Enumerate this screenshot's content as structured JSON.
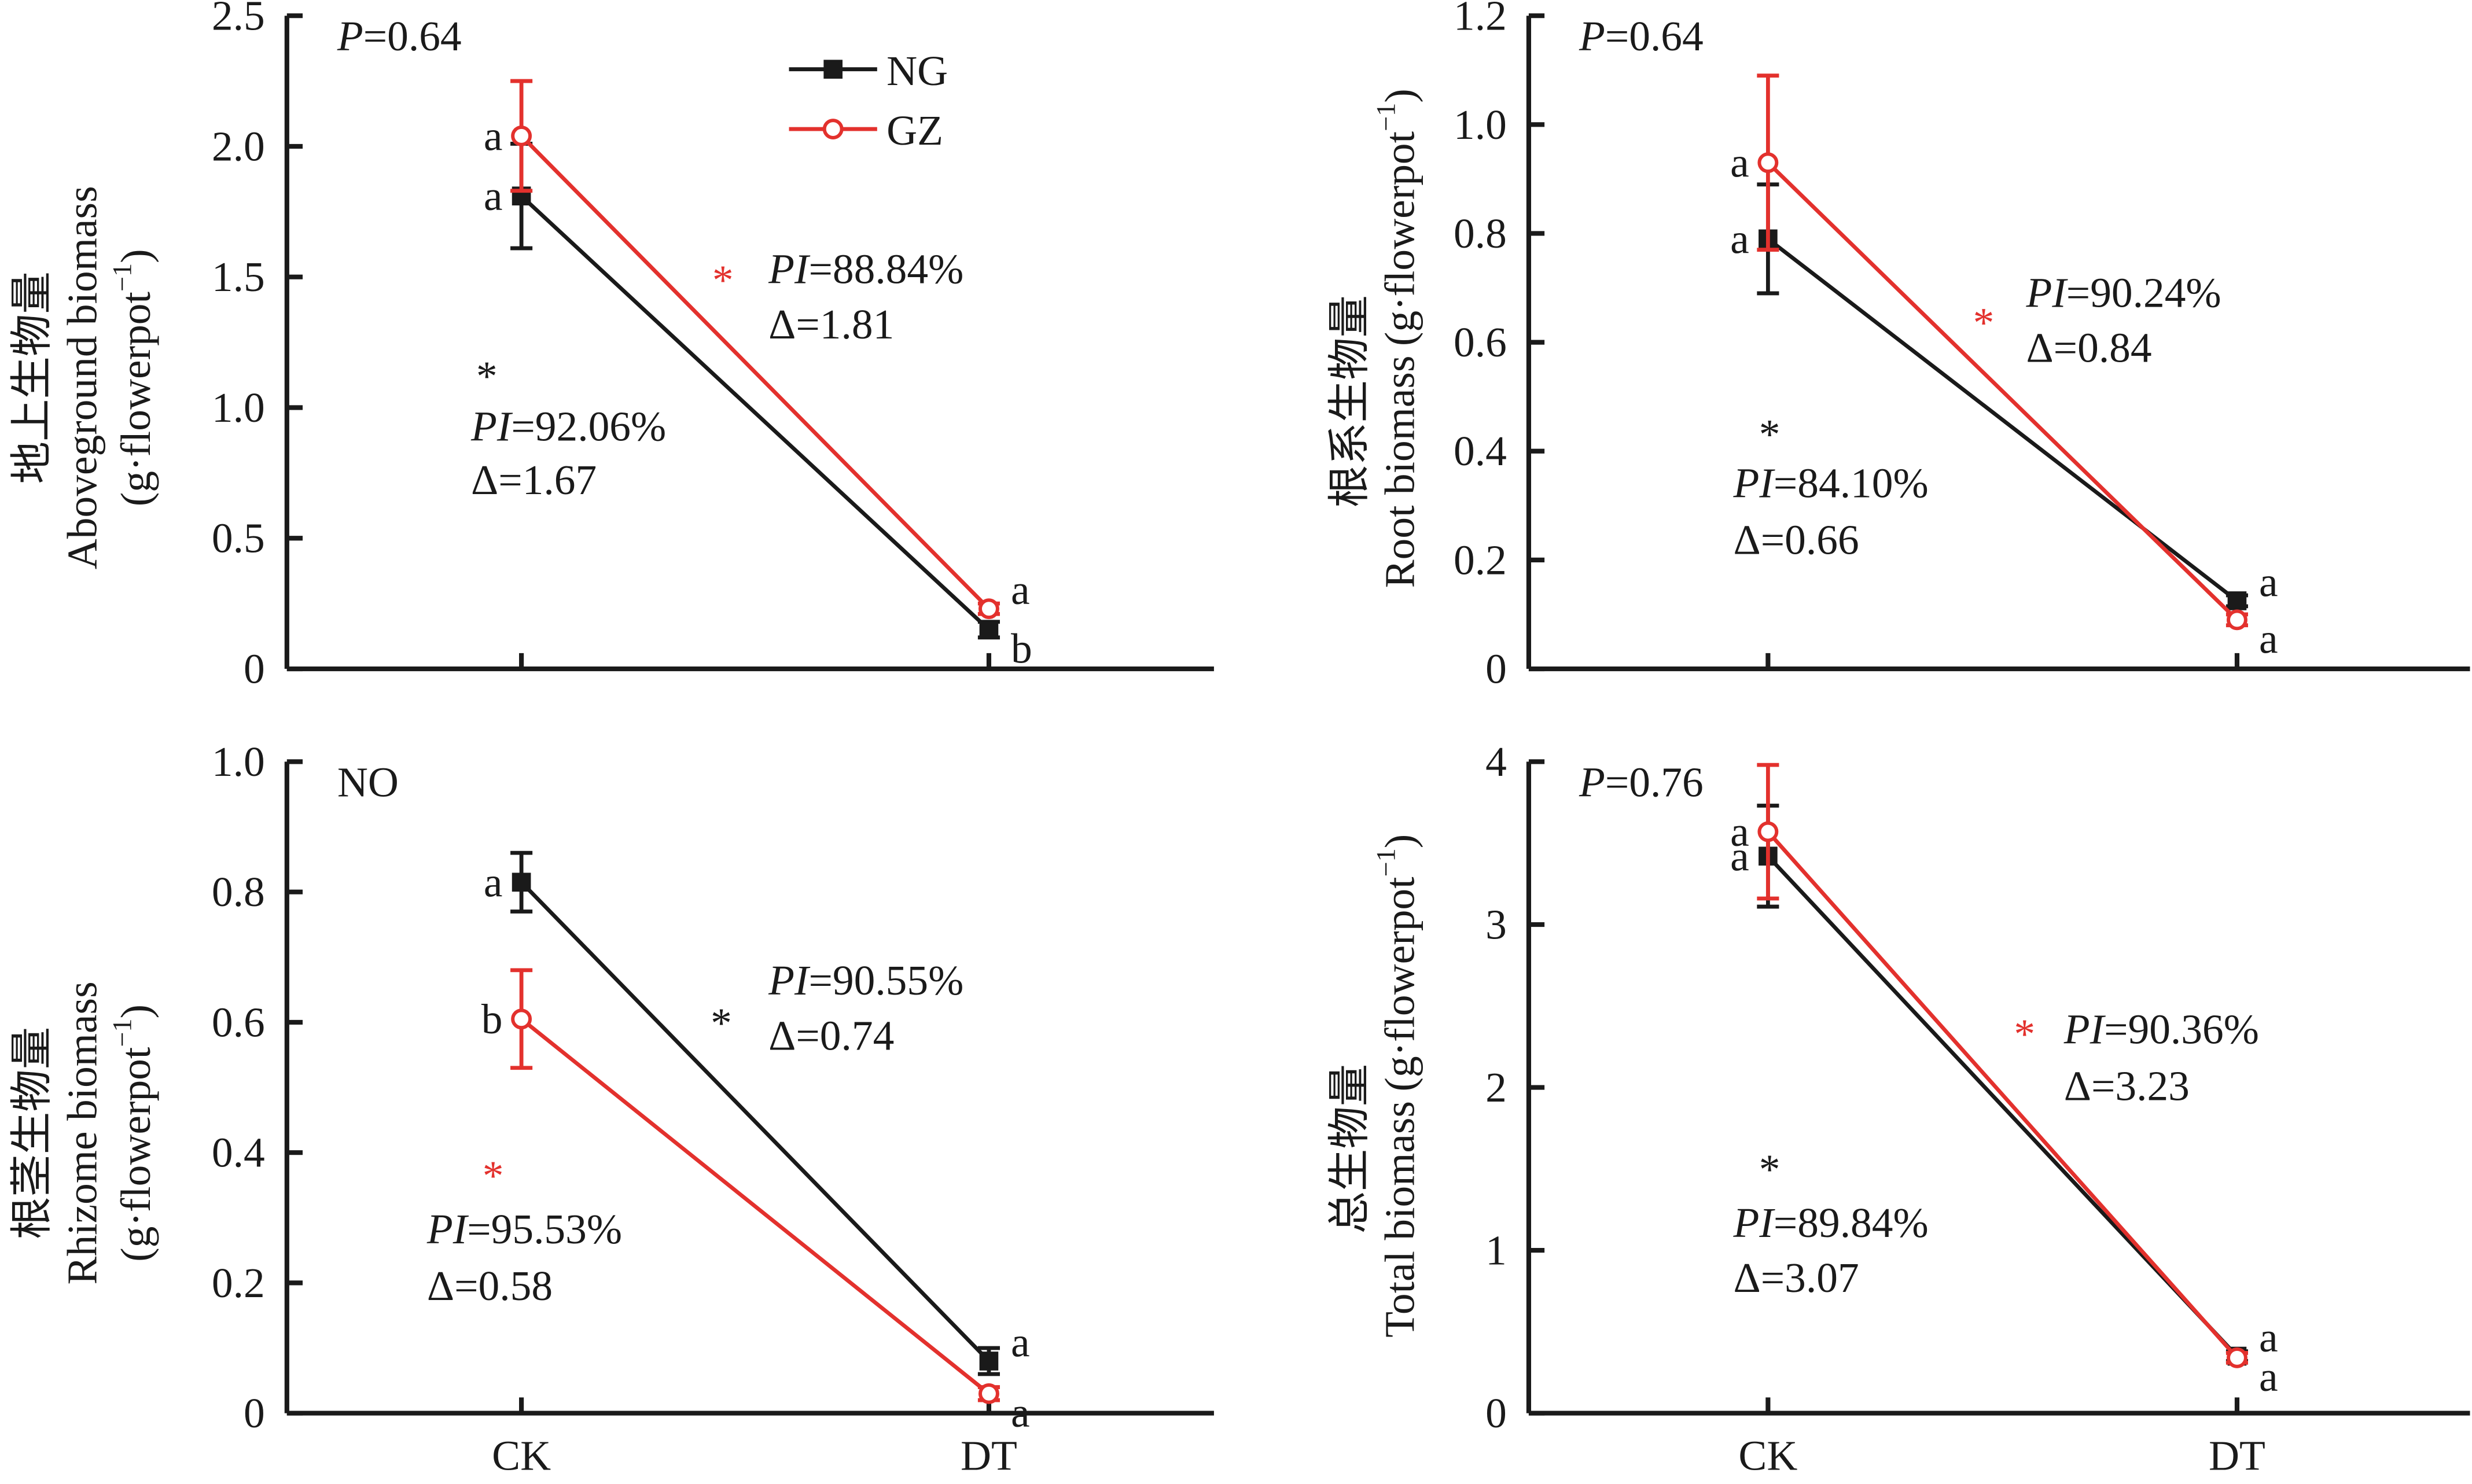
{
  "colors": {
    "NG": "#1a1a1a",
    "GZ": "#e3312d",
    "text": "#1a1a1a"
  },
  "legend": [
    {
      "name": "NG",
      "marker": "filled-square"
    },
    {
      "name": "GZ",
      "marker": "open-circle"
    }
  ],
  "chart_data": [
    {
      "type": "line",
      "panel": "top-left",
      "ylabel_cn": "地上生物量",
      "ylabel": "Aboveground biomass",
      "ylabel_unit": "(g·flowerpot",
      "ylabel_sup": "−1",
      "ylabel_close": ")",
      "categories": [
        "CK",
        "DT"
      ],
      "ylim": [
        0,
        2.5
      ],
      "yticks": [
        0,
        0.5,
        1.0,
        1.5,
        2.0,
        2.5
      ],
      "ytick_labels": [
        "0",
        "0.5",
        "1.0",
        "1.5",
        "2.0",
        "2.5"
      ],
      "p_label": "P",
      "p_value": "=0.64",
      "series": [
        {
          "name": "NG",
          "values": [
            1.81,
            0.15
          ],
          "err_low": [
            1.61,
            0.12
          ],
          "err_high": [
            2.01,
            0.18
          ],
          "letters": [
            "a",
            "b"
          ]
        },
        {
          "name": "GZ",
          "values": [
            2.04,
            0.23
          ],
          "err_low": [
            1.83,
            0.21
          ],
          "err_high": [
            2.25,
            0.25
          ],
          "letters": [
            "a",
            "a"
          ]
        }
      ],
      "annotations": [
        {
          "series": "GZ",
          "star": "*",
          "pi": "=88.84%",
          "delta": "Δ=1.81"
        },
        {
          "series": "NG",
          "star": "*",
          "pi": "=92.06%",
          "delta": "Δ=1.67"
        }
      ],
      "show_legend": true
    },
    {
      "type": "line",
      "panel": "top-right",
      "ylabel_cn": "根系生物量",
      "ylabel": "Root biomass",
      "ylabel_unit": "(g·flowerpot",
      "ylabel_sup": "−1",
      "ylabel_close": ")",
      "categories": [
        "CK",
        "DT"
      ],
      "ylim": [
        0,
        1.2
      ],
      "yticks": [
        0,
        0.2,
        0.4,
        0.6,
        0.8,
        1.0,
        1.2
      ],
      "ytick_labels": [
        "0",
        "0.2",
        "0.4",
        "0.6",
        "0.8",
        "1.0",
        "1.2"
      ],
      "p_label": "P",
      "p_value": "=0.64",
      "series": [
        {
          "name": "NG",
          "values": [
            0.79,
            0.125
          ],
          "err_low": [
            0.69,
            0.115
          ],
          "err_high": [
            0.89,
            0.135
          ],
          "letters": [
            "a",
            "a"
          ]
        },
        {
          "name": "GZ",
          "values": [
            0.93,
            0.09
          ],
          "err_low": [
            0.77,
            0.08
          ],
          "err_high": [
            1.09,
            0.1
          ],
          "letters": [
            "a",
            "a"
          ]
        }
      ],
      "annotations": [
        {
          "series": "GZ",
          "star": "*",
          "pi": "=90.24%",
          "delta": "Δ=0.84"
        },
        {
          "series": "NG",
          "star": "*",
          "pi": "=84.10%",
          "delta": "Δ=0.66"
        }
      ],
      "show_legend": false
    },
    {
      "type": "line",
      "panel": "bottom-left",
      "ylabel_cn": "根茎生物量",
      "ylabel": "Rhizome biomass",
      "ylabel_unit": "(g·flowerpot",
      "ylabel_sup": "−1",
      "ylabel_close": ")",
      "categories": [
        "CK",
        "DT"
      ],
      "ylim": [
        0,
        1.0
      ],
      "yticks": [
        0,
        0.2,
        0.4,
        0.6,
        0.8,
        1.0
      ],
      "ytick_labels": [
        "0",
        "0.2",
        "0.4",
        "0.6",
        "0.8",
        "1.0"
      ],
      "p_label": "",
      "p_value": "NO",
      "series": [
        {
          "name": "NG",
          "values": [
            0.815,
            0.08
          ],
          "err_low": [
            0.77,
            0.06
          ],
          "err_high": [
            0.86,
            0.1
          ],
          "letters": [
            "a",
            "a"
          ]
        },
        {
          "name": "GZ",
          "values": [
            0.605,
            0.03
          ],
          "err_low": [
            0.53,
            0.02
          ],
          "err_high": [
            0.68,
            0.04
          ],
          "letters": [
            "b",
            "a"
          ]
        }
      ],
      "annotations": [
        {
          "series": "NG",
          "star": "*",
          "pi": "=90.55%",
          "delta": "Δ=0.74"
        },
        {
          "series": "GZ",
          "star": "*",
          "pi": "=95.53%",
          "delta": "Δ=0.58"
        }
      ],
      "xlabels_shown": true,
      "show_legend": false
    },
    {
      "type": "line",
      "panel": "bottom-right",
      "ylabel_cn": "总生物量",
      "ylabel": "Total biomass",
      "ylabel_unit": "(g·flowerpot",
      "ylabel_sup": "−1",
      "ylabel_close": ")",
      "categories": [
        "CK",
        "DT"
      ],
      "ylim": [
        0,
        4
      ],
      "yticks": [
        0,
        1,
        2,
        3,
        4
      ],
      "ytick_labels": [
        "0",
        "1",
        "2",
        "3",
        "4"
      ],
      "p_label": "P",
      "p_value": "=0.76",
      "series": [
        {
          "name": "NG",
          "values": [
            3.42,
            0.35
          ],
          "err_low": [
            3.11,
            0.32
          ],
          "err_high": [
            3.73,
            0.38
          ],
          "letters": [
            "a",
            "a"
          ]
        },
        {
          "name": "GZ",
          "values": [
            3.57,
            0.34
          ],
          "err_low": [
            3.16,
            0.31
          ],
          "err_high": [
            3.98,
            0.37
          ],
          "letters": [
            "a",
            "a"
          ]
        }
      ],
      "annotations": [
        {
          "series": "GZ",
          "star": "*",
          "pi": "=90.36%",
          "delta": "Δ=3.23"
        },
        {
          "series": "NG",
          "star": "*",
          "pi": "=89.84%",
          "delta": "Δ=3.07"
        }
      ],
      "xlabels_shown": true,
      "show_legend": false
    }
  ],
  "pi_label": "PI"
}
